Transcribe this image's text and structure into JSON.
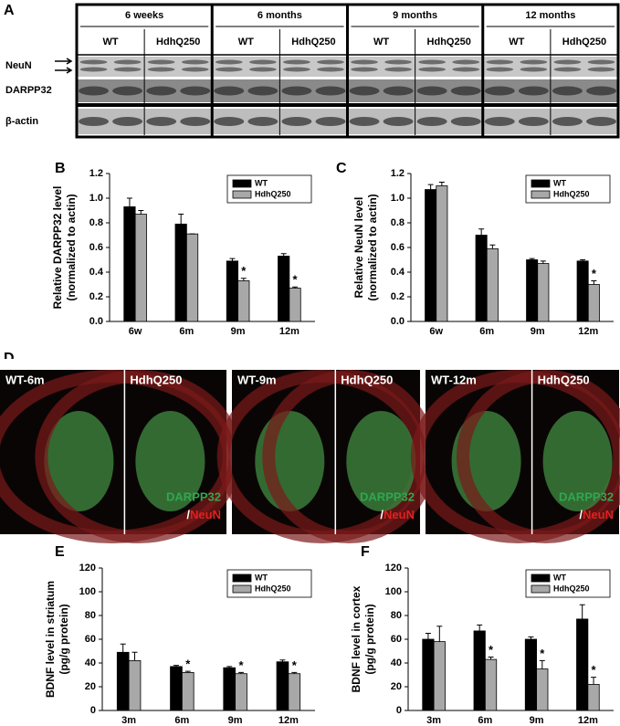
{
  "panel_a": {
    "label": "A",
    "groups": [
      {
        "title": "6 weeks",
        "lanes": [
          "WT",
          "HdhQ250"
        ]
      },
      {
        "title": "6 months",
        "lanes": [
          "WT",
          "HdhQ250"
        ]
      },
      {
        "title": "9 months",
        "lanes": [
          "WT",
          "HdhQ250"
        ]
      },
      {
        "title": "12 months",
        "lanes": [
          "WT",
          "HdhQ250"
        ]
      }
    ],
    "rows": [
      "NeuN",
      "DARPP32",
      "β-actin"
    ]
  },
  "panel_d": {
    "label": "D",
    "images": [
      {
        "left": "WT-6m",
        "right": "HdhQ250",
        "stain": [
          "DARPP32",
          "/",
          "NeuN"
        ]
      },
      {
        "left": "WT-9m",
        "right": "HdhQ250",
        "stain": [
          "DARPP32",
          "/",
          "NeuN"
        ]
      },
      {
        "left": "WT-12m",
        "right": "HdhQ250",
        "stain": [
          "DARPP32",
          "/",
          "NeuN"
        ]
      }
    ]
  },
  "chart_data": [
    {
      "type": "bar",
      "label": "B",
      "ylabel": [
        "Relative DARPP32 level",
        "(normalized to actin)"
      ],
      "categories": [
        "6w",
        "6m",
        "9m",
        "12m"
      ],
      "series": [
        {
          "name": "WT",
          "color": "#000000",
          "values": [
            0.93,
            0.79,
            0.49,
            0.53
          ],
          "errors": [
            0.07,
            0.08,
            0.02,
            0.02
          ],
          "significance": [
            null,
            null,
            null,
            null
          ]
        },
        {
          "name": "HdhQ250",
          "color": "#a8a8a8",
          "values": [
            0.87,
            0.71,
            0.33,
            0.27
          ],
          "errors": [
            0.03,
            0,
            0.02,
            0.01
          ],
          "significance": [
            null,
            null,
            "*",
            "*"
          ]
        }
      ],
      "ylim": [
        0,
        1.2
      ],
      "yticks": [
        {
          "value": 0,
          "label": "0.0"
        },
        0.2,
        0.4,
        0.6,
        0.8,
        {
          "value": 1,
          "label": "1.0"
        },
        1.2
      ],
      "legend": "upper right"
    },
    {
      "type": "bar",
      "label": "C",
      "ylabel": [
        "Relative NeuN level",
        "(normalized to actin)"
      ],
      "categories": [
        "6w",
        "6m",
        "9m",
        "12m"
      ],
      "series": [
        {
          "name": "WT",
          "color": "#000000",
          "values": [
            1.07,
            0.7,
            0.5,
            0.49
          ],
          "errors": [
            0.04,
            0.05,
            0.01,
            0.01
          ],
          "significance": [
            null,
            null,
            null,
            null
          ]
        },
        {
          "name": "HdhQ250",
          "color": "#a8a8a8",
          "values": [
            1.1,
            0.59,
            0.47,
            0.3
          ],
          "errors": [
            0.03,
            0.03,
            0.02,
            0.03
          ],
          "significance": [
            null,
            null,
            null,
            "*"
          ]
        }
      ],
      "ylim": [
        0,
        1.2
      ],
      "yticks": [
        {
          "value": 0,
          "label": "0.0"
        },
        0.2,
        0.4,
        0.6,
        0.8,
        {
          "value": 1,
          "label": "1.0"
        },
        1.2
      ],
      "legend": "upper right"
    },
    {
      "type": "bar",
      "label": "E",
      "ylabel": [
        "BDNF level in striatum",
        "(pg/g protein)"
      ],
      "categories": [
        "3m",
        "6m",
        "9m",
        "12m"
      ],
      "series": [
        {
          "name": "WT",
          "color": "#000000",
          "values": [
            49,
            37,
            36,
            41
          ],
          "errors": [
            7,
            1,
            1,
            1.5
          ],
          "significance": [
            null,
            null,
            null,
            null
          ]
        },
        {
          "name": "HdhQ250",
          "color": "#a8a8a8",
          "values": [
            42,
            32,
            31,
            31
          ],
          "errors": [
            7,
            1,
            1,
            1
          ],
          "significance": [
            null,
            "*",
            "*",
            "*"
          ]
        }
      ],
      "ylim": [
        0,
        120
      ],
      "yticks": [
        0,
        20,
        40,
        60,
        80,
        100,
        120
      ],
      "legend": "upper right"
    },
    {
      "type": "bar",
      "label": "F",
      "ylabel": [
        "BDNF level in cortex",
        "(pg/g protein)"
      ],
      "categories": [
        "3m",
        "6m",
        "9m",
        "12m"
      ],
      "series": [
        {
          "name": "WT",
          "color": "#000000",
          "values": [
            60,
            67,
            60,
            77
          ],
          "errors": [
            5,
            5,
            2,
            12
          ],
          "significance": [
            null,
            null,
            null,
            null
          ]
        },
        {
          "name": "HdhQ250",
          "color": "#a8a8a8",
          "values": [
            58,
            43,
            35,
            22
          ],
          "errors": [
            13,
            2,
            7,
            6
          ],
          "significance": [
            null,
            "*",
            "*",
            "*"
          ]
        }
      ],
      "ylim": [
        0,
        120
      ],
      "yticks": [
        0,
        20,
        40,
        60,
        80,
        100,
        120
      ],
      "legend": "upper right"
    }
  ]
}
